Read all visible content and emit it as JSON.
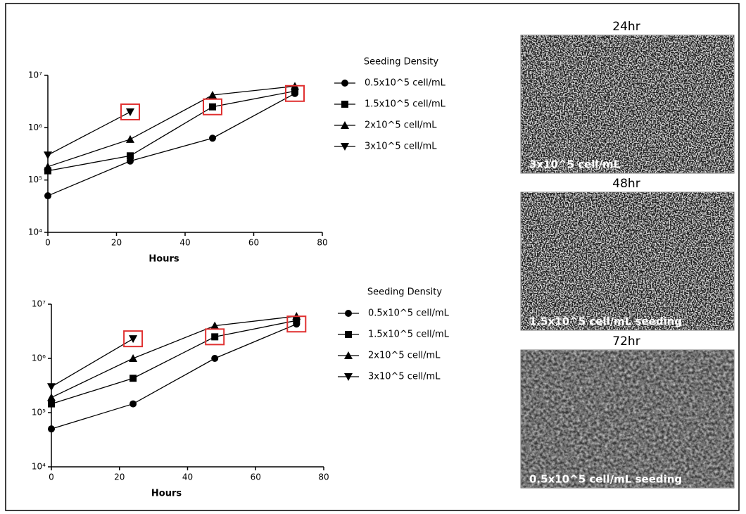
{
  "chart_data": [
    {
      "type": "line",
      "x_label": "Hours",
      "legend_title": "Seeding Density",
      "x": [
        0,
        24,
        48,
        72
      ],
      "xlim": [
        0,
        80
      ],
      "xticks": [
        0,
        20,
        40,
        60,
        80
      ],
      "ylim": [
        10000,
        10000000
      ],
      "log_y": true,
      "yticks": [
        {
          "value": 10000,
          "label": "10⁴"
        },
        {
          "value": 100000,
          "label": "10⁵"
        },
        {
          "value": 1000000,
          "label": "10⁶"
        },
        {
          "value": 10000000,
          "label": "10⁷"
        }
      ],
      "highlight_color": "#e03030",
      "series": [
        {
          "name": "0.5x10^5 cell/mL",
          "color": "#000000",
          "marker": "circle",
          "values": [
            50000,
            230000,
            630000,
            4500000
          ]
        },
        {
          "name": "1.5x10^5 cell/mL",
          "color": "#000000",
          "marker": "square",
          "values": [
            150000,
            290000,
            2500000,
            5000000
          ]
        },
        {
          "name": "2x10^5 cell/mL",
          "color": "#000000",
          "marker": "triangle-up",
          "values": [
            180000,
            600000,
            4200000,
            6200000
          ]
        },
        {
          "name": "3x10^5 cell/mL",
          "color": "#000000",
          "marker": "triangle-down",
          "values": [
            300000,
            2000000,
            null,
            null
          ]
        }
      ],
      "highlights": [
        [
          3,
          1
        ],
        [
          1,
          2
        ],
        [
          0,
          3
        ]
      ]
    },
    {
      "type": "line",
      "x_label": "Hours",
      "legend_title": "Seeding Density",
      "x": [
        0,
        24,
        48,
        72
      ],
      "xlim": [
        0,
        80
      ],
      "xticks": [
        0,
        20,
        40,
        60,
        80
      ],
      "ylim": [
        10000,
        10000000
      ],
      "log_y": true,
      "yticks": [
        {
          "value": 10000,
          "label": "10⁴"
        },
        {
          "value": 100000,
          "label": "10⁵"
        },
        {
          "value": 1000000,
          "label": "10⁶"
        },
        {
          "value": 10000000,
          "label": "10⁷"
        }
      ],
      "highlight_color": "#e03030",
      "series": [
        {
          "name": "0.5x10^5 cell/mL",
          "color": "#000000",
          "marker": "circle",
          "values": [
            50000,
            145000,
            1000000,
            4300000
          ]
        },
        {
          "name": "1.5x10^5 cell/mL",
          "color": "#000000",
          "marker": "square",
          "values": [
            145000,
            430000,
            2500000,
            5000000
          ]
        },
        {
          "name": "2x10^5 cell/mL",
          "color": "#000000",
          "marker": "triangle-up",
          "values": [
            190000,
            1000000,
            4000000,
            6000000
          ]
        },
        {
          "name": "3x10^5 cell/mL",
          "color": "#000000",
          "marker": "triangle-down",
          "values": [
            300000,
            2300000,
            null,
            null
          ]
        }
      ],
      "highlights": [
        [
          3,
          1
        ],
        [
          1,
          2
        ],
        [
          0,
          3
        ]
      ]
    }
  ],
  "images": [
    {
      "title": "24hr",
      "caption": "3x10^5 cell/mL"
    },
    {
      "title": "48hr",
      "caption": "1.5x10^5 cell/mL seeding"
    },
    {
      "title": "72hr",
      "caption": "0.5x10^5 cell/mL seeding"
    }
  ]
}
